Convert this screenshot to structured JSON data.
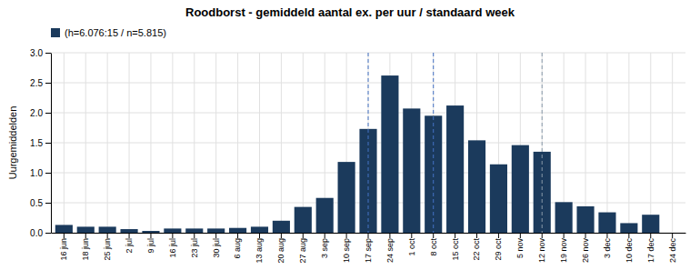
{
  "chart_data": {
    "type": "bar",
    "title": "Roodborst - gemiddeld aantal ex. per uur / standaard week",
    "y_label": "Uurgemiddelden",
    "categories": [
      "16 jun",
      "18 jun",
      "25 jun",
      "2 jul",
      "9 jul",
      "16 jul",
      "23 jul",
      "30 jul",
      "6 aug",
      "13 aug",
      "20 aug",
      "27 aug",
      "3 sep",
      "10 sep",
      "17 sep",
      "24 sep",
      "1 oct",
      "8 oct",
      "15 oct",
      "22 oct",
      "29 oct",
      "5 nov",
      "12 nov",
      "19 nov",
      "26 nov",
      "3 dec",
      "10 dec",
      "17 dec",
      "24 dec"
    ],
    "series": [
      {
        "name": "(h=6.076:15 / n=5.815)",
        "color": "#1B3A5C",
        "values": [
          0.13,
          0.1,
          0.1,
          0.06,
          0.03,
          0.07,
          0.07,
          0.07,
          0.08,
          0.1,
          0.2,
          0.43,
          0.58,
          1.18,
          1.73,
          2.62,
          2.07,
          1.95,
          2.12,
          1.54,
          1.14,
          1.46,
          1.35,
          0.51,
          0.44,
          0.34,
          0.16,
          0.3,
          0.0
        ]
      }
    ],
    "reference_lines": [
      {
        "x": "17 sep",
        "color": "#4472C4",
        "line_style": "dashed"
      },
      {
        "x": "8 oct",
        "color": "#4472C4",
        "line_style": "dashed"
      },
      {
        "x": "12 nov",
        "color": "#8899AA",
        "line_style": "dashed"
      }
    ],
    "ylim": [
      0,
      3.0
    ],
    "yticks": [
      {
        "value": 0,
        "label": "0.0"
      },
      0.5,
      {
        "value": 1,
        "label": "1.0"
      },
      1.5,
      {
        "value": 2,
        "label": "2.0"
      },
      2.5,
      {
        "value": 3,
        "label": "3.0"
      }
    ],
    "grid": true,
    "legend": "upper left"
  }
}
